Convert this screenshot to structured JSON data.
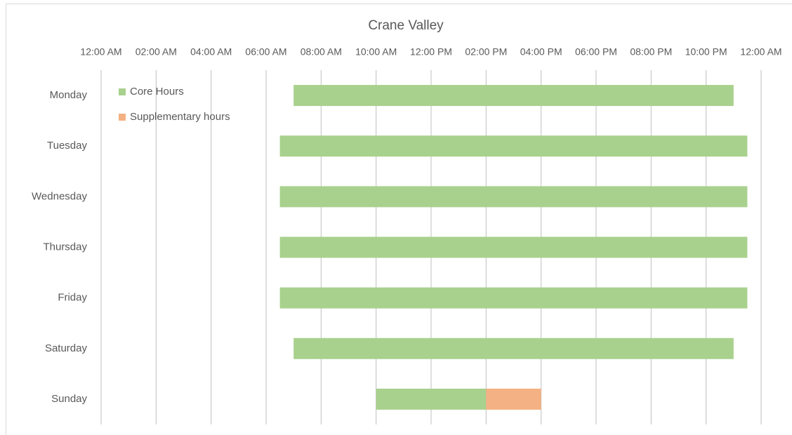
{
  "chart_data": {
    "type": "floating-bar",
    "title": "Crane Valley",
    "categories": [
      "Monday",
      "Tuesday",
      "Wednesday",
      "Thursday",
      "Friday",
      "Saturday",
      "Sunday"
    ],
    "series": [
      {
        "name": "Core Hours",
        "color": "#a9d18e",
        "start": [
          7,
          6.5,
          6.5,
          6.5,
          6.5,
          7,
          10
        ],
        "end": [
          23,
          23.5,
          23.5,
          23.5,
          23.5,
          23,
          14
        ]
      },
      {
        "name": "Supplementary hours",
        "color": "#f4b183",
        "start": [
          null,
          null,
          null,
          null,
          null,
          null,
          14
        ],
        "end": [
          null,
          null,
          null,
          null,
          null,
          null,
          16
        ]
      }
    ],
    "xlim": [
      0,
      24
    ],
    "xticks": [
      {
        "value": 0,
        "label": "12:00 AM"
      },
      {
        "value": 2,
        "label": "02:00 AM"
      },
      {
        "value": 4,
        "label": "04:00 AM"
      },
      {
        "value": 6,
        "label": "06:00 AM"
      },
      {
        "value": 8,
        "label": "08:00 AM"
      },
      {
        "value": 10,
        "label": "10:00 AM"
      },
      {
        "value": 12,
        "label": "12:00 PM"
      },
      {
        "value": 14,
        "label": "02:00 PM"
      },
      {
        "value": 16,
        "label": "04:00 PM"
      },
      {
        "value": 18,
        "label": "06:00 PM"
      },
      {
        "value": 20,
        "label": "08:00 PM"
      },
      {
        "value": 22,
        "label": "10:00 PM"
      },
      {
        "value": 24,
        "label": "12:00 AM"
      }
    ],
    "grid": true,
    "legend": "upper left"
  }
}
